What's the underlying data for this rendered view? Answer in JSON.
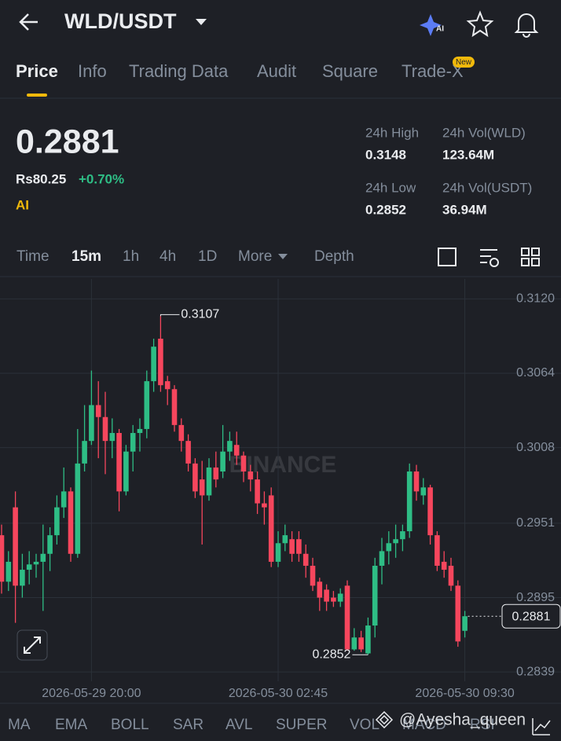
{
  "header": {
    "title": "WLD/USDT",
    "ai_badge": "AI"
  },
  "tabs": {
    "items": [
      "Price",
      "Info",
      "Trading Data",
      "Audit",
      "Square",
      "Trade-X"
    ],
    "badge": "New"
  },
  "ticker": {
    "price": "0.2881",
    "fiat": "Rs80.25",
    "change": "+0.70%",
    "ai": "AI",
    "stats": [
      {
        "label": "24h High",
        "value": "0.3148"
      },
      {
        "label": "24h Vol(WLD)",
        "value": "123.64M"
      },
      {
        "label": "24h Low",
        "value": "0.2852"
      },
      {
        "label": "24h Vol(USDT)",
        "value": "36.94M"
      }
    ]
  },
  "intervals": [
    "Time",
    "15m",
    "1h",
    "4h",
    "1D",
    "More",
    "Depth"
  ],
  "chart_data": {
    "type": "candlestick",
    "watermark": "BINANCE",
    "up_color": "#2ebd85",
    "down_color": "#f6465d",
    "grid": true,
    "ylim": [
      0.2832,
      0.3135
    ],
    "yticks": [
      {
        "value": 0.312,
        "label": "0.3120"
      },
      0.3064,
      0.3008,
      0.2951,
      0.2895,
      0.2839
    ],
    "xticks": [
      {
        "value": 13,
        "label": "2026-05-29 20:00"
      },
      {
        "value": 40,
        "label": "2026-05-30 02:45"
      },
      {
        "value": 67,
        "label": "2026-05-30 09:30"
      }
    ],
    "open": [
      0.2942,
      0.2907,
      0.2963,
      0.2904,
      0.2916,
      0.292,
      0.2922,
      0.2928,
      0.2942,
      0.2963,
      0.2975,
      0.2928,
      0.2996,
      0.3013,
      0.304,
      0.3031,
      0.3013,
      0.3019,
      0.2975,
      0.3005,
      0.3019,
      0.3022,
      0.3058,
      0.309,
      0.3058,
      0.3052,
      0.3025,
      0.3013,
      0.2996,
      0.2984,
      0.2972,
      0.2993,
      0.299,
      0.3005,
      0.301,
      0.3002,
      0.299,
      0.2984,
      0.2966,
      0.2972,
      0.2922,
      0.2936,
      0.2939,
      0.2939,
      0.2928,
      0.2919,
      0.2907,
      0.2901,
      0.2895,
      0.2892,
      0.2904,
      0.2856,
      0.2865,
      0.2853,
      0.2874,
      0.2919,
      0.293,
      0.2936,
      0.2939,
      0.2945,
      0.299,
      0.2972,
      0.2978,
      0.2942,
      0.2922,
      0.2919,
      0.2904,
      0.287
    ],
    "high": [
      0.295,
      0.293,
      0.2975,
      0.2928,
      0.293,
      0.2928,
      0.295,
      0.2948,
      0.2972,
      0.2993,
      0.2978,
      0.3022,
      0.304,
      0.3066,
      0.3058,
      0.305,
      0.303,
      0.3022,
      0.301,
      0.3025,
      0.303,
      0.3066,
      0.309,
      0.3107,
      0.3062,
      0.3055,
      0.303,
      0.3018,
      0.3,
      0.2998,
      0.3,
      0.3005,
      0.3025,
      0.302,
      0.302,
      0.3005,
      0.2995,
      0.299,
      0.2975,
      0.2978,
      0.2945,
      0.295,
      0.2945,
      0.2945,
      0.2935,
      0.2925,
      0.291,
      0.2905,
      0.29,
      0.2902,
      0.2908,
      0.2872,
      0.287,
      0.288,
      0.2925,
      0.294,
      0.2945,
      0.295,
      0.295,
      0.2996,
      0.2995,
      0.2985,
      0.298,
      0.2945,
      0.293,
      0.2925,
      0.2908,
      0.2885
    ],
    "low": [
      0.2898,
      0.29,
      0.2876,
      0.2895,
      0.2905,
      0.291,
      0.2885,
      0.2915,
      0.2935,
      0.2955,
      0.2922,
      0.2925,
      0.299,
      0.301,
      0.3,
      0.2988,
      0.3,
      0.296,
      0.2972,
      0.299,
      0.3005,
      0.3015,
      0.305,
      0.305,
      0.304,
      0.302,
      0.3005,
      0.299,
      0.297,
      0.2935,
      0.2968,
      0.2978,
      0.2985,
      0.2998,
      0.2995,
      0.2982,
      0.2975,
      0.2958,
      0.295,
      0.2918,
      0.2918,
      0.293,
      0.2922,
      0.2922,
      0.291,
      0.29,
      0.2885,
      0.2885,
      0.2888,
      0.2888,
      0.2855,
      0.2855,
      0.2854,
      0.2852,
      0.2865,
      0.2905,
      0.292,
      0.2925,
      0.293,
      0.294,
      0.2968,
      0.2965,
      0.2935,
      0.2915,
      0.291,
      0.29,
      0.2858,
      0.2865
    ],
    "close": [
      0.2907,
      0.2922,
      0.2904,
      0.2916,
      0.292,
      0.2922,
      0.2928,
      0.2942,
      0.2963,
      0.2975,
      0.2928,
      0.2996,
      0.3013,
      0.304,
      0.3031,
      0.3013,
      0.3019,
      0.2975,
      0.3005,
      0.3019,
      0.3022,
      0.3058,
      0.3084,
      0.3055,
      0.3052,
      0.3025,
      0.3013,
      0.2996,
      0.2975,
      0.2972,
      0.2993,
      0.2984,
      0.3005,
      0.3013,
      0.3002,
      0.299,
      0.2984,
      0.2966,
      0.2963,
      0.2922,
      0.2936,
      0.2942,
      0.2928,
      0.2928,
      0.2919,
      0.2904,
      0.2895,
      0.2892,
      0.2892,
      0.2898,
      0.2856,
      0.2865,
      0.2856,
      0.2874,
      0.2919,
      0.293,
      0.2936,
      0.2939,
      0.2945,
      0.299,
      0.2975,
      0.2978,
      0.2942,
      0.2919,
      0.2916,
      0.2904,
      0.2862,
      0.2881
    ],
    "high_annotation": 0.3107,
    "low_annotation": 0.2852,
    "last_price": 0.2881
  },
  "indicators": [
    "MA",
    "EMA",
    "BOLL",
    "SAR",
    "AVL",
    "SUPER",
    "VOL",
    "MACD",
    "RSI"
  ],
  "watermark": "@Ayesha_queen"
}
